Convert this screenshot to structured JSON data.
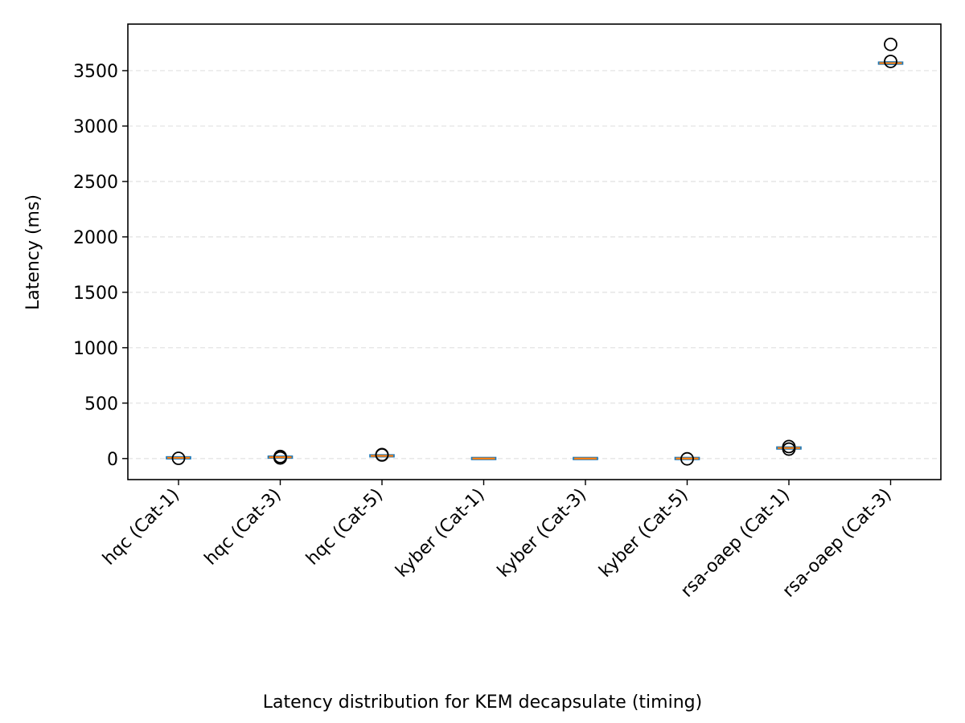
{
  "chart_data": {
    "type": "boxplot",
    "title": "",
    "caption": "Latency distribution for KEM decapsulate (timing)",
    "xlabel": "",
    "ylabel": "Latency (ms)",
    "ylim": [
      -190,
      3920
    ],
    "yticks": [
      0,
      500,
      1000,
      1500,
      2000,
      2500,
      3000,
      3500
    ],
    "grid": "y-dashed",
    "categories": [
      "hqc (Cat-1)",
      "hqc (Cat-3)",
      "hqc (Cat-5)",
      "kyber (Cat-1)",
      "kyber (Cat-3)",
      "kyber (Cat-5)",
      "rsa-oaep (Cat-1)",
      "rsa-oaep (Cat-3)"
    ],
    "series": [
      {
        "category": "hqc (Cat-1)",
        "min": 3,
        "q1": 5,
        "median": 6,
        "q3": 8,
        "max": 10,
        "outliers": [
          2
        ]
      },
      {
        "category": "hqc (Cat-3)",
        "min": 9,
        "q1": 11,
        "median": 12,
        "q3": 14,
        "max": 16,
        "outliers": [
          5,
          18
        ]
      },
      {
        "category": "hqc (Cat-5)",
        "min": 20,
        "q1": 22,
        "median": 24,
        "q3": 27,
        "max": 30,
        "outliers": [
          32,
          35
        ]
      },
      {
        "category": "kyber (Cat-1)",
        "min": 0.1,
        "q1": 0.2,
        "median": 0.3,
        "q3": 0.4,
        "max": 0.5,
        "outliers": []
      },
      {
        "category": "kyber (Cat-3)",
        "min": 0.2,
        "q1": 0.3,
        "median": 0.4,
        "q3": 0.5,
        "max": 0.6,
        "outliers": []
      },
      {
        "category": "kyber (Cat-5)",
        "min": 0.3,
        "q1": 0.4,
        "median": 0.5,
        "q3": 0.6,
        "max": 0.8,
        "outliers": [
          -3
        ]
      },
      {
        "category": "rsa-oaep (Cat-1)",
        "min": 88,
        "q1": 92,
        "median": 95,
        "q3": 98,
        "max": 102,
        "outliers": [
          85,
          108
        ]
      },
      {
        "category": "rsa-oaep (Cat-3)",
        "min": 3555,
        "q1": 3562,
        "median": 3568,
        "q3": 3574,
        "max": 3580,
        "outliers": [
          3583,
          3737
        ]
      }
    ],
    "colors": {
      "box": "#1f77b4",
      "median": "#ff7f0e",
      "outlier": "#000000",
      "grid": "#e0e0e0",
      "axis": "#000000"
    }
  }
}
